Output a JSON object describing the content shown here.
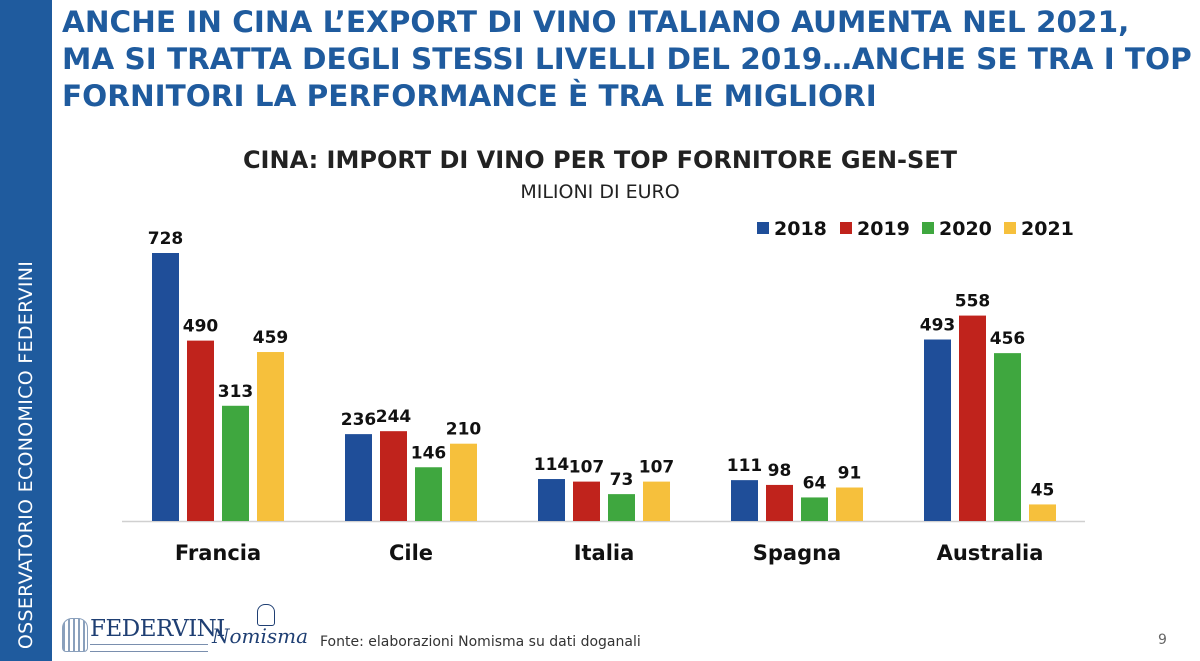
{
  "sidebar": {
    "text": "OSSERVATORIO ECONOMICO  FEDERVINI"
  },
  "headline": {
    "lines": [
      "ANCHE IN CINA L’EXPORT DI VINO ITALIANO AUMENTA NEL 2021,",
      "MA SI TRATTA DEGLI STESSI LIVELLI DEL 2019…ANCHE SE TRA I TOP",
      "FORNITORI LA PERFORMANCE È TRA LE MIGLIORI"
    ]
  },
  "chart_data": {
    "type": "bar",
    "title": "CINA: IMPORT DI VINO PER TOP FORNITORE GEN-SET",
    "subtitle": "MILIONI DI EURO",
    "categories": [
      "Francia",
      "Cile",
      "Italia",
      "Spagna",
      "Australia"
    ],
    "series": [
      {
        "name": "2018",
        "color": "#1f4e99",
        "values": [
          728,
          236,
          114,
          111,
          493
        ]
      },
      {
        "name": "2019",
        "color": "#c0231c",
        "values": [
          490,
          244,
          107,
          98,
          558
        ]
      },
      {
        "name": "2020",
        "color": "#3fa73f",
        "values": [
          313,
          146,
          73,
          64,
          456
        ]
      },
      {
        "name": "2021",
        "color": "#f6c03c",
        "values": [
          459,
          210,
          107,
          91,
          45
        ]
      }
    ],
    "ylim": [
      0,
      750
    ],
    "legend": "top-right",
    "grid": false,
    "xlabel": "",
    "ylabel": ""
  },
  "footer": {
    "source": "Fonte: elaborazioni Nomisma su dati doganali",
    "logo_federvini": "FEDERVINI",
    "logo_nomisma": "Nomisma",
    "page_number": "9"
  }
}
